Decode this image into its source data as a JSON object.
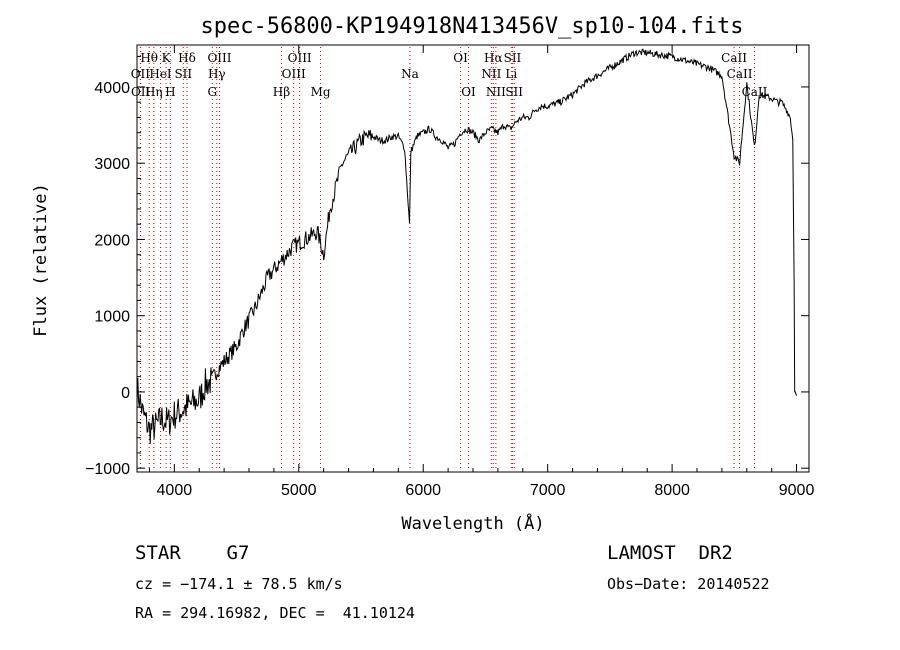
{
  "chart_data": {
    "type": "line",
    "title": "spec-56800-KP194918N413456V_sp10-104.fits",
    "xlabel": "Wavelength (Å)",
    "ylabel": "Flux (relative)",
    "xlim": [
      3700,
      9100
    ],
    "ylim": [
      -1050,
      4550
    ],
    "xticks": [
      4000,
      5000,
      6000,
      7000,
      8000,
      9000
    ],
    "xtick_labels": [
      "4000",
      "5000",
      "6000",
      "7000",
      "8000",
      "9000"
    ],
    "yticks": [
      -1000,
      0,
      1000,
      2000,
      3000,
      4000
    ],
    "ytick_labels": [
      "−1000",
      "0",
      "1000",
      "2000",
      "3000",
      "4000"
    ],
    "grid": false,
    "series": [
      {
        "x": [
          3700,
          3750,
          3800,
          3850,
          3900,
          3950,
          4000,
          4050,
          4100,
          4150,
          4200,
          4250,
          4300,
          4350,
          4400,
          4450,
          4500,
          4550,
          4600,
          4650,
          4700,
          4750,
          4800,
          4850,
          4900,
          4950,
          5000,
          5050,
          5100,
          5150,
          5200,
          5250,
          5300,
          5350,
          5400,
          5450,
          5500,
          5550,
          5600,
          5650,
          5700,
          5750,
          5800,
          5850,
          5890,
          5900,
          5950,
          6000,
          6050,
          6100,
          6150,
          6200,
          6250,
          6300,
          6350,
          6400,
          6450,
          6500,
          6550,
          6600,
          6650,
          6700,
          6750,
          6800,
          6850,
          6900,
          6950,
          7000,
          7100,
          7200,
          7300,
          7400,
          7500,
          7600,
          7700,
          7800,
          7900,
          8000,
          8100,
          8200,
          8300,
          8400,
          8498,
          8542,
          8600,
          8662,
          8700,
          8800,
          8850,
          8880,
          8900,
          8920,
          8950,
          8970,
          8980,
          8985,
          8990,
          9000
        ],
        "y": [
          50,
          -300,
          -500,
          -450,
          -350,
          -400,
          -300,
          -250,
          -200,
          -150,
          -100,
          100,
          150,
          300,
          400,
          500,
          600,
          800,
          950,
          1100,
          1300,
          1500,
          1600,
          1700,
          1800,
          1900,
          1950,
          2000,
          2050,
          2100,
          1800,
          2400,
          2700,
          3000,
          3100,
          3200,
          3300,
          3350,
          3350,
          3300,
          3300,
          3350,
          3350,
          3200,
          2200,
          3150,
          3350,
          3400,
          3450,
          3350,
          3300,
          3200,
          3250,
          3400,
          3450,
          3400,
          3300,
          3400,
          3450,
          3400,
          3500,
          3450,
          3550,
          3600,
          3600,
          3700,
          3750,
          3750,
          3800,
          3900,
          4050,
          4150,
          4250,
          4350,
          4450,
          4450,
          4420,
          4400,
          4350,
          4300,
          4250,
          4150,
          3100,
          3000,
          4050,
          3200,
          3900,
          3850,
          3800,
          3800,
          3750,
          3700,
          3600,
          3300,
          1500,
          0,
          0,
          -50
        ]
      }
    ],
    "lines": [
      {
        "name": "Hθ",
        "wave": 3798,
        "row": 1
      },
      {
        "name": "K",
        "wave": 3934,
        "row": 1
      },
      {
        "name": "Hδ",
        "wave": 4102,
        "row": 1
      },
      {
        "name": "OIII",
        "wave": 4363,
        "row": 1
      },
      {
        "name": "OIII",
        "wave": 5007,
        "row": 1
      },
      {
        "name": "OI",
        "wave": 6300,
        "row": 1
      },
      {
        "name": "Hα",
        "wave": 6563,
        "row": 1
      },
      {
        "name": "SII",
        "wave": 6717,
        "row": 1
      },
      {
        "name": "CaII",
        "wave": 8498,
        "row": 1
      },
      {
        "name": "OII",
        "wave": 3727,
        "row": 2
      },
      {
        "name": "HeI",
        "wave": 3889,
        "row": 2
      },
      {
        "name": "SII",
        "wave": 4072,
        "row": 2
      },
      {
        "name": "Hγ",
        "wave": 4341,
        "row": 2
      },
      {
        "name": "OIII",
        "wave": 4959,
        "row": 2
      },
      {
        "name": "Na",
        "wave": 5893,
        "row": 2
      },
      {
        "name": "NII",
        "wave": 6548,
        "row": 2
      },
      {
        "name": "Li",
        "wave": 6708,
        "row": 2
      },
      {
        "name": "CaII",
        "wave": 8542,
        "row": 2
      },
      {
        "name": "OII",
        "wave": 3729,
        "row": 3
      },
      {
        "name": "Hη",
        "wave": 3835,
        "row": 3
      },
      {
        "name": "H",
        "wave": 3968,
        "row": 3
      },
      {
        "name": "G",
        "wave": 4305,
        "row": 3
      },
      {
        "name": "Hβ",
        "wave": 4861,
        "row": 3
      },
      {
        "name": "Mg",
        "wave": 5175,
        "row": 3
      },
      {
        "name": "OI",
        "wave": 6364,
        "row": 3
      },
      {
        "name": "NII",
        "wave": 6584,
        "row": 3
      },
      {
        "name": "SII",
        "wave": 6731,
        "row": 3
      },
      {
        "name": "CaII",
        "wave": 8662,
        "row": 3
      }
    ],
    "line_color": "#cc0000"
  },
  "info": {
    "object": "STAR    G7",
    "survey": "LAMOST  DR2",
    "cz": "cz = −174.1 ± 78.5 km/s",
    "obs_date": "Obs−Date: 20140522",
    "coords": "RA = 294.16982, DEC =  41.10124"
  }
}
